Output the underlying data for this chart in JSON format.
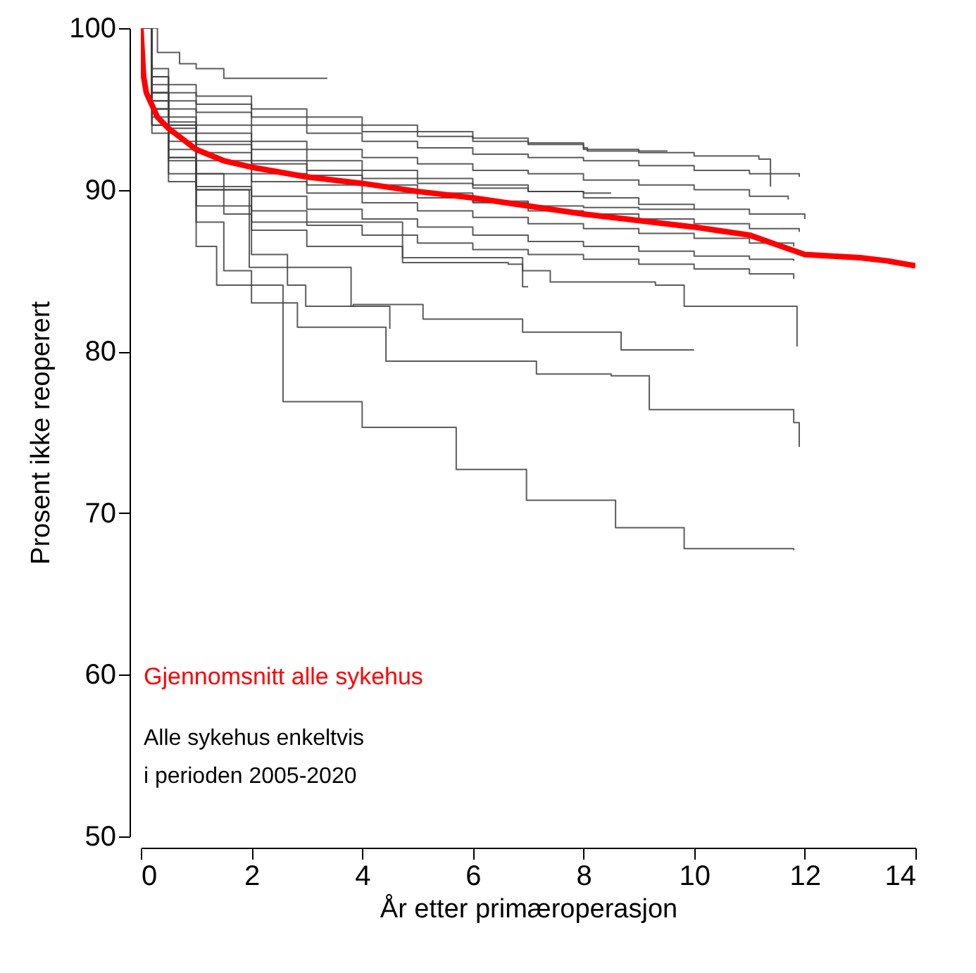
{
  "chart_data": {
    "type": "step",
    "xlabel": "År etter primæroperasjon",
    "ylabel": "Prosent ikke reoperert",
    "xlim": [
      0,
      14
    ],
    "ylim": [
      50,
      100
    ],
    "xticks": [
      0,
      2,
      4,
      6,
      8,
      10,
      12,
      14
    ],
    "yticks": [
      50,
      60,
      70,
      80,
      90,
      100
    ],
    "grid": false,
    "annotations": [
      "Alle sykehus enkeltvis\ni perioden 2005-2020"
    ],
    "series": [
      {
        "color": "#404040",
        "x": [
          0,
          0.3,
          0.7,
          1.0,
          1.5,
          3.37
        ],
        "values": [
          100,
          98.5,
          97.8,
          97.5,
          96.9,
          96.9
        ]
      },
      {
        "color": "#404040",
        "x": [
          0,
          0.2,
          0.5,
          1,
          2,
          3,
          4,
          5,
          6,
          7,
          8,
          9,
          10,
          11,
          11.9
        ],
        "values": [
          100,
          97,
          95.5,
          94.8,
          94,
          93.5,
          93,
          92.6,
          92.2,
          92,
          91.8,
          91.5,
          91.2,
          91,
          90.8
        ]
      },
      {
        "color": "#404040",
        "x": [
          0,
          0.2,
          0.5,
          1,
          2,
          3,
          4,
          5,
          6,
          7,
          8,
          9,
          10,
          11,
          11.7
        ],
        "values": [
          100,
          96.5,
          95,
          94,
          93,
          92.5,
          92,
          91.6,
          91.2,
          91,
          90.6,
          90.3,
          90,
          89.6,
          89.4
        ]
      },
      {
        "color": "#404040",
        "x": [
          0,
          0.2,
          0.5,
          1,
          2,
          3,
          4,
          5,
          6,
          7,
          8,
          9,
          10,
          11,
          12
        ],
        "values": [
          100,
          96,
          94.5,
          93.5,
          92.5,
          91.8,
          91.2,
          90.7,
          90.3,
          89.9,
          89.5,
          89.1,
          88.8,
          88.5,
          88.2
        ]
      },
      {
        "color": "#404040",
        "x": [
          0,
          0.2,
          0.5,
          1,
          2,
          3,
          4,
          5,
          6,
          7,
          8,
          9,
          10,
          11,
          11.9
        ],
        "values": [
          100,
          95.5,
          93.8,
          92.8,
          91.6,
          90.9,
          90.3,
          89.8,
          89.3,
          88.7,
          88.5,
          88.2,
          87.9,
          87.6,
          87.4
        ]
      },
      {
        "color": "#404040",
        "x": [
          0,
          0.2,
          0.5,
          1,
          2,
          3,
          4,
          5,
          6,
          7,
          8,
          9,
          10,
          11,
          11.8
        ],
        "values": [
          100,
          95,
          93,
          91.8,
          90.5,
          89.8,
          89.2,
          88.7,
          88.3,
          87.9,
          87.6,
          87.3,
          87,
          86.7,
          86.5
        ]
      },
      {
        "color": "#404040",
        "x": [
          0,
          0.2,
          0.5,
          1,
          2,
          3,
          4,
          5,
          6,
          7,
          8,
          9,
          10,
          11,
          11.8
        ],
        "values": [
          100,
          94.5,
          92.5,
          91,
          89.6,
          88.8,
          88.2,
          87.7,
          87.2,
          86.8,
          86.5,
          86.2,
          85.9,
          85.7,
          85.6
        ]
      },
      {
        "color": "#404040",
        "x": [
          0,
          0.2,
          0.5,
          1,
          2,
          3,
          4,
          5,
          6,
          7,
          8,
          9,
          10,
          11,
          11.8
        ],
        "values": [
          100,
          94,
          91.8,
          90.2,
          88.7,
          87.8,
          87.2,
          86.7,
          86.3,
          86,
          85.7,
          85.4,
          85.1,
          84.8,
          84.5
        ]
      },
      {
        "color": "#404040",
        "x": [
          0,
          0.2,
          0.5,
          1,
          2,
          3,
          4,
          5,
          6,
          7,
          8,
          8.07,
          9.52
        ],
        "values": [
          100,
          97.5,
          96.5,
          95.8,
          95,
          94.5,
          94,
          93.6,
          93.2,
          92.9,
          92.6,
          92.4,
          92.4
        ]
      },
      {
        "color": "#404040",
        "x": [
          0,
          0.2,
          0.5,
          1,
          2,
          3,
          4,
          5,
          6,
          7,
          8,
          9,
          10,
          11.17,
          11.38
        ],
        "values": [
          100,
          97,
          96,
          95.3,
          94.5,
          94,
          93.6,
          93.3,
          93,
          92.8,
          92.5,
          92.3,
          92.1,
          91.9,
          90.2
        ]
      },
      {
        "color": "#404040",
        "x": [
          0,
          0.2,
          0.5,
          1,
          2,
          3,
          4,
          5,
          6,
          7,
          8,
          8.5
        ],
        "values": [
          100,
          96,
          94.2,
          93,
          91.8,
          91.2,
          90.7,
          90.4,
          90.1,
          89.9,
          89.8,
          89.8
        ]
      },
      {
        "color": "#404040",
        "x": [
          0,
          0.2,
          0.5,
          1,
          2,
          3,
          4,
          5,
          6,
          7,
          8,
          9,
          10
        ],
        "values": [
          100,
          95.5,
          93.5,
          92.3,
          91,
          90.3,
          89.8,
          89.5,
          89.2,
          89,
          88.9,
          88.8,
          88.8
        ]
      },
      {
        "color": "#404040",
        "x": [
          0,
          0.2,
          0.5,
          1,
          2,
          4.73,
          6.64,
          6.9,
          7.0
        ],
        "values": [
          100,
          94,
          92,
          90,
          88,
          85.5,
          85.4,
          84,
          84
        ]
      },
      {
        "color": "#404040",
        "x": [
          0,
          0.2,
          0.5,
          1,
          2,
          3,
          4.73,
          6.9,
          7.4,
          9.3,
          9.82,
          11.86
        ],
        "values": [
          100,
          93.5,
          91,
          89,
          87.5,
          86.5,
          85.8,
          85,
          84.3,
          84.1,
          82.8,
          80.3
        ]
      },
      {
        "color": "#404040",
        "x": [
          0,
          0.2,
          0.5,
          1,
          1.96,
          3.8,
          4.5
        ],
        "values": [
          100,
          96,
          94,
          90,
          85.2,
          82.8,
          81.4
        ]
      },
      {
        "color": "#404040",
        "x": [
          0,
          0.2,
          0.5,
          1,
          1.5,
          2,
          2.65,
          2.98,
          3.84,
          5.1,
          6.9,
          8.68,
          10.0
        ],
        "values": [
          100,
          96,
          94,
          91,
          88.5,
          86,
          84.1,
          82.8,
          82.9,
          82,
          81.2,
          80.1,
          80.1
        ]
      },
      {
        "color": "#404040",
        "x": [
          0,
          0.2,
          0.5,
          1,
          1.5,
          2,
          2.83,
          4.43,
          7.15,
          8.5,
          9.19,
          11.8,
          11.9
        ],
        "values": [
          100,
          95,
          92,
          88,
          85,
          83,
          81.5,
          79.4,
          78.6,
          78.5,
          76.4,
          75.6,
          74.1
        ]
      },
      {
        "color": "#404040",
        "x": [
          0,
          0.2,
          0.5,
          1.0,
          1.37,
          2.57,
          4.0,
          5.7,
          6.97,
          8.58,
          9.82,
          11.8
        ],
        "values": [
          100,
          95,
          90.5,
          86.5,
          84.1,
          76.9,
          75.3,
          72.7,
          70.8,
          69.1,
          67.8,
          67.7
        ]
      },
      {
        "type": "line",
        "name": "Gjennomsnitt alle sykehus",
        "color": "#ff0000",
        "x": [
          0,
          0.05,
          0.1,
          0.3,
          0.5,
          1,
          1.5,
          2,
          3,
          4,
          5,
          6,
          7,
          8,
          9,
          10,
          11,
          11.5,
          12,
          13,
          13.5,
          14
        ],
        "values": [
          100,
          97,
          96,
          94.5,
          93.8,
          92.5,
          91.8,
          91.4,
          90.8,
          90.4,
          89.9,
          89.5,
          89.0,
          88.5,
          88.1,
          87.7,
          87.2,
          86.6,
          86.0,
          85.8,
          85.6,
          85.3
        ]
      }
    ]
  }
}
